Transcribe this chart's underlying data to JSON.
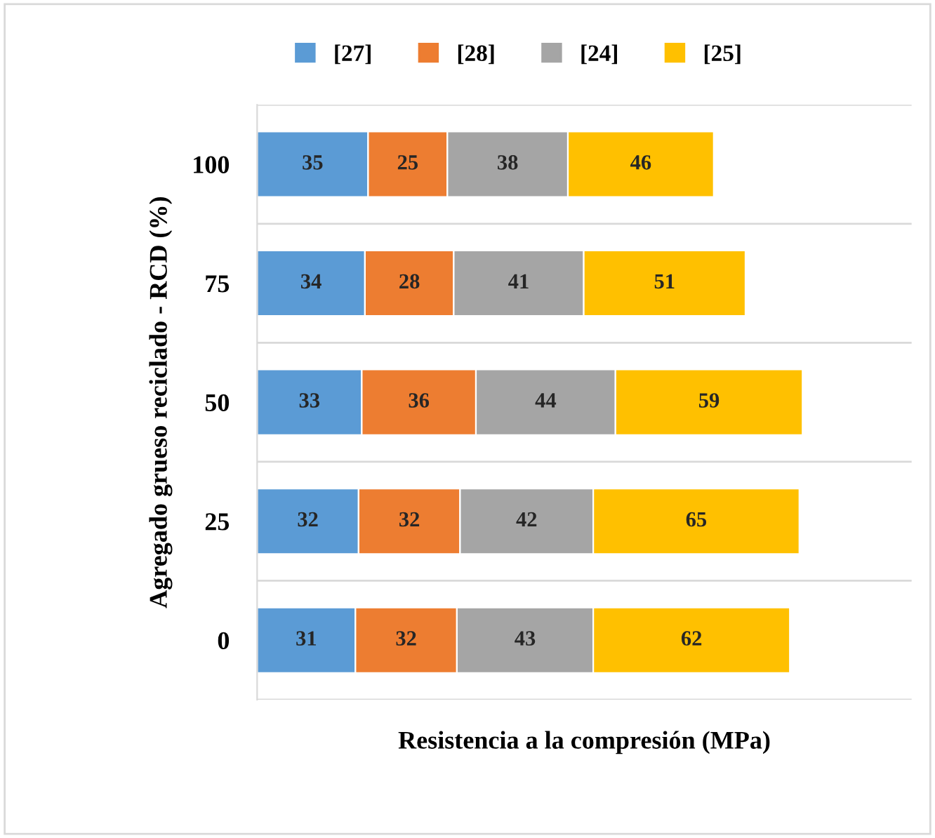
{
  "chart_data": {
    "type": "bar",
    "orientation": "horizontal",
    "stacked": true,
    "data_labels": true,
    "grid": "y",
    "legend": "top",
    "xlabel": "Resistencia a la compresión (MPa)",
    "ylabel": "Agregado grueso reciclado - RCD (%)",
    "categories": [
      "100",
      "75",
      "50",
      "25",
      "0"
    ],
    "series": [
      {
        "name": "[27]",
        "color": "#5b9bd5",
        "values": [
          35,
          34,
          33,
          32,
          31
        ]
      },
      {
        "name": "[28]",
        "color": "#ed7d31",
        "values": [
          25,
          28,
          36,
          32,
          32
        ]
      },
      {
        "name": "[24]",
        "color": "#a5a5a5",
        "values": [
          38,
          41,
          44,
          42,
          43
        ]
      },
      {
        "name": "[25]",
        "color": "#ffc000",
        "values": [
          46,
          51,
          59,
          65,
          62
        ]
      }
    ]
  }
}
